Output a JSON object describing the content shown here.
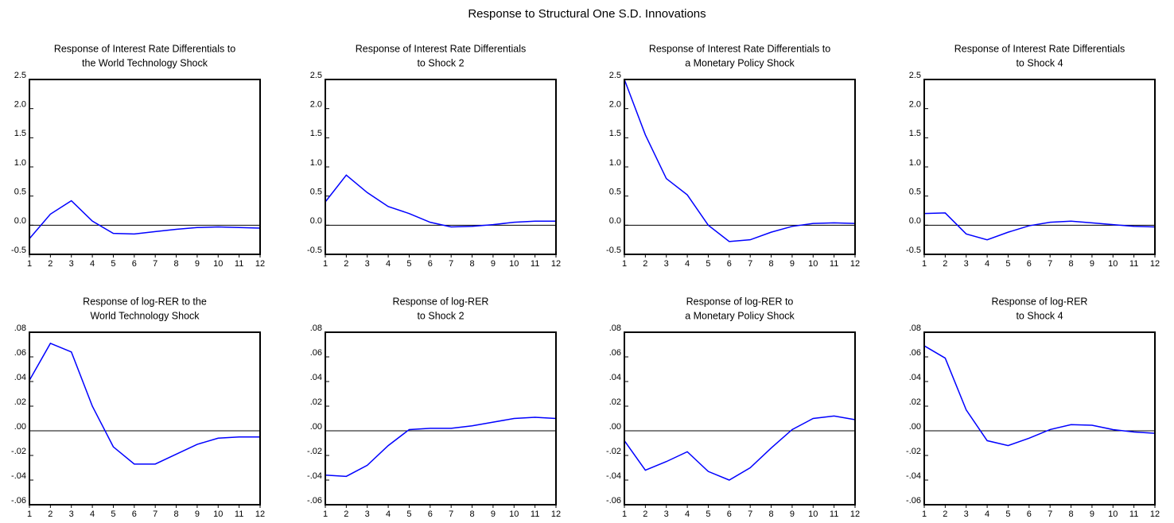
{
  "title": "Response to Structural One S.D. Innovations",
  "chart_data": [
    {
      "type": "line",
      "title": [
        "Response of Interest Rate Differentials to",
        "the World Technology Shock"
      ],
      "color": "#0000ff",
      "x": [
        1,
        2,
        3,
        4,
        5,
        6,
        7,
        8,
        9,
        10,
        11,
        12
      ],
      "values": [
        -0.23,
        0.19,
        0.42,
        0.07,
        -0.14,
        -0.15,
        -0.11,
        -0.07,
        -0.04,
        -0.03,
        -0.04,
        -0.05
      ],
      "xlim": [
        1,
        12
      ],
      "xticks": [
        1,
        2,
        3,
        4,
        5,
        6,
        7,
        8,
        9,
        10,
        11,
        12
      ],
      "ylim": [
        -0.5,
        2.5
      ],
      "yticks": [
        -0.5,
        {
          "value": 0,
          "label": "0.0"
        },
        0.5,
        {
          "value": 1,
          "label": "1.0"
        },
        1.5,
        {
          "value": 2,
          "label": "2.0"
        },
        2.5
      ]
    },
    {
      "type": "line",
      "title": [
        "Response of Interest Rate Differentials",
        "to Shock 2"
      ],
      "color": "#0000ff",
      "x": [
        1,
        2,
        3,
        4,
        5,
        6,
        7,
        8,
        9,
        10,
        11,
        12
      ],
      "values": [
        0.4,
        0.86,
        0.56,
        0.32,
        0.2,
        0.05,
        -0.03,
        -0.02,
        0.01,
        0.05,
        0.07,
        0.07
      ],
      "xlim": [
        1,
        12
      ],
      "xticks": [
        1,
        2,
        3,
        4,
        5,
        6,
        7,
        8,
        9,
        10,
        11,
        12
      ],
      "ylim": [
        -0.5,
        2.5
      ],
      "yticks": [
        -0.5,
        {
          "value": 0,
          "label": "0.0"
        },
        0.5,
        {
          "value": 1,
          "label": "1.0"
        },
        1.5,
        {
          "value": 2,
          "label": "2.0"
        },
        2.5
      ]
    },
    {
      "type": "line",
      "title": [
        "Response of Interest Rate Differentials to",
        "a Monetary Policy Shock"
      ],
      "color": "#0000ff",
      "x": [
        1,
        2,
        3,
        4,
        5,
        6,
        7,
        8,
        9,
        10,
        11,
        12
      ],
      "values": [
        2.5,
        1.55,
        0.8,
        0.52,
        0.0,
        -0.28,
        -0.25,
        -0.12,
        -0.02,
        0.03,
        0.04,
        0.03
      ],
      "xlim": [
        1,
        12
      ],
      "xticks": [
        1,
        2,
        3,
        4,
        5,
        6,
        7,
        8,
        9,
        10,
        11,
        12
      ],
      "ylim": [
        -0.5,
        2.5
      ],
      "yticks": [
        -0.5,
        {
          "value": 0,
          "label": "0.0"
        },
        0.5,
        {
          "value": 1,
          "label": "1.0"
        },
        1.5,
        {
          "value": 2,
          "label": "2.0"
        },
        2.5
      ]
    },
    {
      "type": "line",
      "title": [
        "Response of Interest Rate Differentials",
        "to Shock 4"
      ],
      "color": "#0000ff",
      "x": [
        1,
        2,
        3,
        4,
        5,
        6,
        7,
        8,
        9,
        10,
        11,
        12
      ],
      "values": [
        0.2,
        0.21,
        -0.15,
        -0.25,
        -0.12,
        -0.01,
        0.05,
        0.07,
        0.04,
        0.01,
        -0.02,
        -0.03
      ],
      "xlim": [
        1,
        12
      ],
      "xticks": [
        1,
        2,
        3,
        4,
        5,
        6,
        7,
        8,
        9,
        10,
        11,
        12
      ],
      "ylim": [
        -0.5,
        2.5
      ],
      "yticks": [
        -0.5,
        {
          "value": 0,
          "label": "0.0"
        },
        0.5,
        {
          "value": 1,
          "label": "1.0"
        },
        1.5,
        {
          "value": 2,
          "label": "2.0"
        },
        2.5
      ]
    },
    {
      "type": "line",
      "title": [
        "Response of log-RER to the",
        "World Technology Shock"
      ],
      "color": "#0000ff",
      "x": [
        1,
        2,
        3,
        4,
        5,
        6,
        7,
        8,
        9,
        10,
        11,
        12
      ],
      "values": [
        0.041,
        0.071,
        0.064,
        0.02,
        -0.013,
        -0.027,
        -0.027,
        -0.019,
        -0.011,
        -0.006,
        -0.005,
        -0.005
      ],
      "xlim": [
        1,
        12
      ],
      "xticks": [
        1,
        2,
        3,
        4,
        5,
        6,
        7,
        8,
        9,
        10,
        11,
        12
      ],
      "ylim": [
        -0.06,
        0.08
      ],
      "yticks": [
        {
          "value": -0.06,
          "label": "-.06"
        },
        {
          "value": -0.04,
          "label": "-.04"
        },
        {
          "value": -0.02,
          "label": "-.02"
        },
        {
          "value": 0,
          "label": ".00"
        },
        {
          "value": 0.02,
          "label": ".02"
        },
        {
          "value": 0.04,
          "label": ".04"
        },
        {
          "value": 0.06,
          "label": ".06"
        },
        {
          "value": 0.08,
          "label": ".08"
        }
      ]
    },
    {
      "type": "line",
      "title": [
        "Response of log-RER",
        "to Shock 2"
      ],
      "color": "#0000ff",
      "x": [
        1,
        2,
        3,
        4,
        5,
        6,
        7,
        8,
        9,
        10,
        11,
        12
      ],
      "values": [
        -0.036,
        -0.037,
        -0.028,
        -0.012,
        0.001,
        0.002,
        0.002,
        0.004,
        0.007,
        0.01,
        0.011,
        0.01
      ],
      "xlim": [
        1,
        12
      ],
      "xticks": [
        1,
        2,
        3,
        4,
        5,
        6,
        7,
        8,
        9,
        10,
        11,
        12
      ],
      "ylim": [
        -0.06,
        0.08
      ],
      "yticks": [
        {
          "value": -0.06,
          "label": "-.06"
        },
        {
          "value": -0.04,
          "label": "-.04"
        },
        {
          "value": -0.02,
          "label": "-.02"
        },
        {
          "value": 0,
          "label": ".00"
        },
        {
          "value": 0.02,
          "label": ".02"
        },
        {
          "value": 0.04,
          "label": ".04"
        },
        {
          "value": 0.06,
          "label": ".06"
        },
        {
          "value": 0.08,
          "label": ".08"
        }
      ]
    },
    {
      "type": "line",
      "title": [
        "Response of log-RER to",
        "a Monetary Policy Shock"
      ],
      "color": "#0000ff",
      "x": [
        1,
        2,
        3,
        4,
        5,
        6,
        7,
        8,
        9,
        10,
        11,
        12
      ],
      "values": [
        -0.008,
        -0.032,
        -0.025,
        -0.017,
        -0.033,
        -0.04,
        -0.03,
        -0.014,
        0.001,
        0.01,
        0.012,
        0.009
      ],
      "xlim": [
        1,
        12
      ],
      "xticks": [
        1,
        2,
        3,
        4,
        5,
        6,
        7,
        8,
        9,
        10,
        11,
        12
      ],
      "ylim": [
        -0.06,
        0.08
      ],
      "yticks": [
        {
          "value": -0.06,
          "label": "-.06"
        },
        {
          "value": -0.04,
          "label": "-.04"
        },
        {
          "value": -0.02,
          "label": "-.02"
        },
        {
          "value": 0,
          "label": ".00"
        },
        {
          "value": 0.02,
          "label": ".02"
        },
        {
          "value": 0.04,
          "label": ".04"
        },
        {
          "value": 0.06,
          "label": ".06"
        },
        {
          "value": 0.08,
          "label": ".08"
        }
      ]
    },
    {
      "type": "line",
      "title": [
        "Response of log-RER",
        "to Shock 4"
      ],
      "color": "#0000ff",
      "x": [
        1,
        2,
        3,
        4,
        5,
        6,
        7,
        8,
        9,
        10,
        11,
        12
      ],
      "values": [
        0.069,
        0.059,
        0.017,
        -0.008,
        -0.012,
        -0.006,
        0.001,
        0.005,
        0.0045,
        0.001,
        -0.001,
        -0.002
      ],
      "xlim": [
        1,
        12
      ],
      "xticks": [
        1,
        2,
        3,
        4,
        5,
        6,
        7,
        8,
        9,
        10,
        11,
        12
      ],
      "ylim": [
        -0.06,
        0.08
      ],
      "yticks": [
        {
          "value": -0.06,
          "label": "-.06"
        },
        {
          "value": -0.04,
          "label": "-.04"
        },
        {
          "value": -0.02,
          "label": "-.02"
        },
        {
          "value": 0,
          "label": ".00"
        },
        {
          "value": 0.02,
          "label": ".02"
        },
        {
          "value": 0.04,
          "label": ".04"
        },
        {
          "value": 0.06,
          "label": ".06"
        },
        {
          "value": 0.08,
          "label": ".08"
        }
      ]
    }
  ]
}
